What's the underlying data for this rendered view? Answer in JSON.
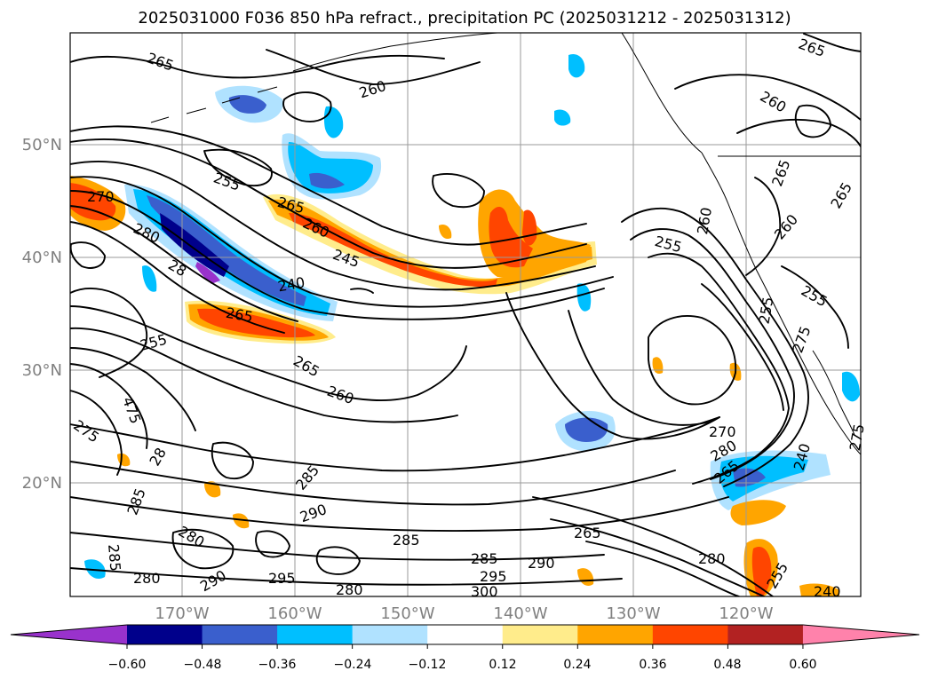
{
  "title": "2025031000 F036 850 hPa refract., precipitation PC (2025031212 - 2025031312)",
  "map": {
    "lat_labels": [
      "50°N",
      "40°N",
      "30°N",
      "20°N"
    ],
    "lon_labels": [
      "170°W",
      "160°W",
      "150°W",
      "140°W",
      "130°W",
      "120°W"
    ],
    "contour_labels": [
      "265",
      "260",
      "260",
      "265",
      "270",
      "255",
      "265",
      "280",
      "260",
      "245",
      "28",
      "240",
      "255",
      "265",
      "260",
      "275",
      "475",
      "28",
      "285",
      "285",
      "280",
      "285",
      "280",
      "290",
      "290",
      "295",
      "285",
      "285",
      "295",
      "290",
      "300",
      "280",
      "255",
      "260",
      "265",
      "265",
      "260",
      "255",
      "255",
      "275",
      "240",
      "270",
      "280",
      "265",
      "275",
      "265",
      "280",
      "255",
      "240",
      "265"
    ]
  },
  "colorbar": {
    "tick_labels": [
      "−0.60",
      "−0.48",
      "−0.36",
      "−0.24",
      "−0.12",
      "0.12",
      "0.24",
      "0.36",
      "0.48",
      "0.60"
    ],
    "colors": [
      "#9932cc",
      "#00008b",
      "#3a5fcd",
      "#00bfff",
      "#b0e2ff",
      "#ffffff",
      "#ffec8b",
      "#ffa500",
      "#ff4500",
      "#b22222",
      "#ff82ab"
    ]
  }
}
